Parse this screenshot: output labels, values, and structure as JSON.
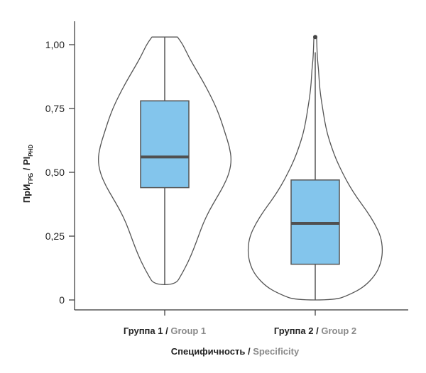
{
  "chart_data": {
    "type": "violin",
    "ylim": [
      0,
      1.0
    ],
    "y_ticks": [
      {
        "value": 0,
        "label": "0"
      },
      {
        "value": 0.25,
        "label": "0,25"
      },
      {
        "value": 0.5,
        "label": "0,50"
      },
      {
        "value": 0.75,
        "label": "0,75"
      },
      {
        "value": 1.0,
        "label": "1,00"
      }
    ],
    "ylabel": {
      "ru": "ПрИ",
      "ru_sub": "ГРБ",
      "sep": " / ",
      "en": "PI",
      "en_sub": "PHD"
    },
    "xlabel": {
      "ru": "Специфичность",
      "sep": " / ",
      "en": "Specificity"
    },
    "grid": false,
    "colors": {
      "box_fill": "#83c5ec",
      "outline": "#555555",
      "median": "#505050",
      "label_ru": "#222222",
      "label_en": "#8a8a8a"
    },
    "groups": [
      {
        "label_ru": "Группа 1",
        "label_en": "Group 1",
        "min": 0.06,
        "q1": 0.44,
        "median": 0.56,
        "q3": 0.78,
        "max": 1.03,
        "outliers": [],
        "density": [
          [
            1.03,
            0.19
          ],
          [
            1.0,
            0.27
          ],
          [
            0.95,
            0.36
          ],
          [
            0.9,
            0.47
          ],
          [
            0.85,
            0.58
          ],
          [
            0.8,
            0.68
          ],
          [
            0.75,
            0.77
          ],
          [
            0.7,
            0.84
          ],
          [
            0.65,
            0.9
          ],
          [
            0.6,
            0.96
          ],
          [
            0.55,
            0.99
          ],
          [
            0.5,
            0.96
          ],
          [
            0.45,
            0.88
          ],
          [
            0.4,
            0.77
          ],
          [
            0.35,
            0.66
          ],
          [
            0.3,
            0.57
          ],
          [
            0.25,
            0.5
          ],
          [
            0.2,
            0.43
          ],
          [
            0.15,
            0.35
          ],
          [
            0.1,
            0.25
          ],
          [
            0.06,
            0.16
          ]
        ]
      },
      {
        "label_ru": "Группа 2",
        "label_en": "Group 2",
        "min": 0.0,
        "q1": 0.14,
        "median": 0.3,
        "q3": 0.47,
        "max": 0.97,
        "outliers": [
          1.03
        ],
        "density": [
          [
            1.03,
            0.02
          ],
          [
            0.95,
            0.03
          ],
          [
            0.9,
            0.05
          ],
          [
            0.85,
            0.06
          ],
          [
            0.8,
            0.08
          ],
          [
            0.75,
            0.11
          ],
          [
            0.7,
            0.14
          ],
          [
            0.65,
            0.18
          ],
          [
            0.6,
            0.24
          ],
          [
            0.55,
            0.31
          ],
          [
            0.5,
            0.4
          ],
          [
            0.45,
            0.5
          ],
          [
            0.4,
            0.62
          ],
          [
            0.35,
            0.76
          ],
          [
            0.3,
            0.88
          ],
          [
            0.25,
            0.97
          ],
          [
            0.2,
            1.0
          ],
          [
            0.15,
            0.98
          ],
          [
            0.1,
            0.9
          ],
          [
            0.05,
            0.72
          ],
          [
            0.02,
            0.5
          ],
          [
            0.0,
            0.3
          ]
        ]
      }
    ]
  }
}
